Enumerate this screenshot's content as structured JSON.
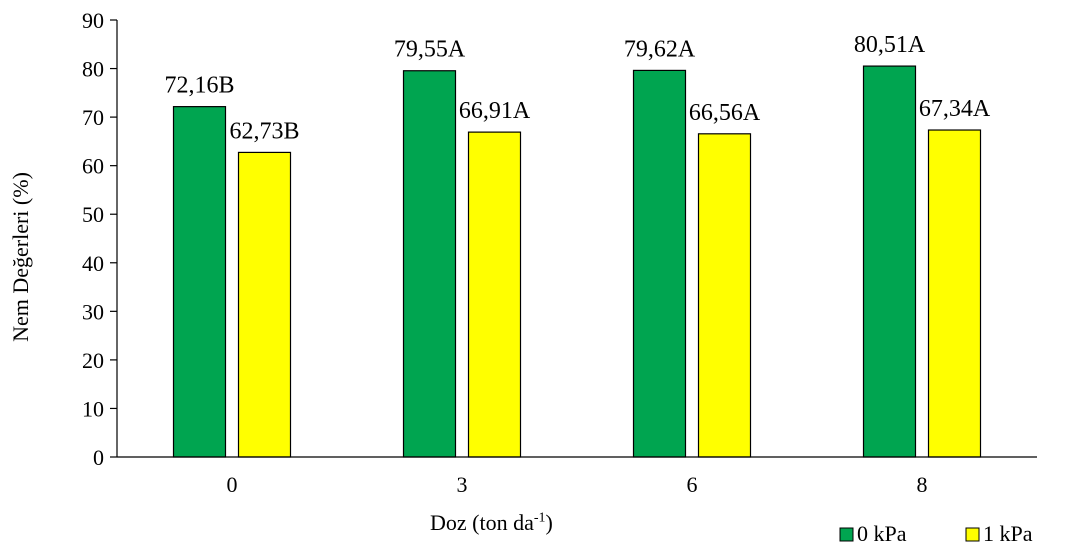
{
  "chart_data": {
    "type": "bar",
    "categories": [
      "0",
      "3",
      "6",
      "8"
    ],
    "series": [
      {
        "name": "0 kPa",
        "color": "#00a550",
        "values": [
          72.16,
          79.55,
          79.62,
          80.51
        ],
        "labels": [
          "72,16B",
          "79,55A",
          "79,62A",
          "80,51A"
        ]
      },
      {
        "name": "1 kPa",
        "color": "#ffff00",
        "values": [
          62.73,
          66.91,
          66.56,
          67.34
        ],
        "labels": [
          "62,73B",
          "66,91A",
          "66,56A",
          "67,34A"
        ]
      }
    ],
    "ylim": [
      0,
      90
    ],
    "yticks": [
      "0",
      "10",
      "20",
      "30",
      "40",
      "50",
      "60",
      "70",
      "80",
      "90"
    ],
    "ylabel": "Nem Değerleri (%)",
    "xlabel": {
      "main": "Doz (ton da",
      "sup": "-1",
      "close": ")"
    },
    "grid": false,
    "legend_position": "bottom-right"
  }
}
